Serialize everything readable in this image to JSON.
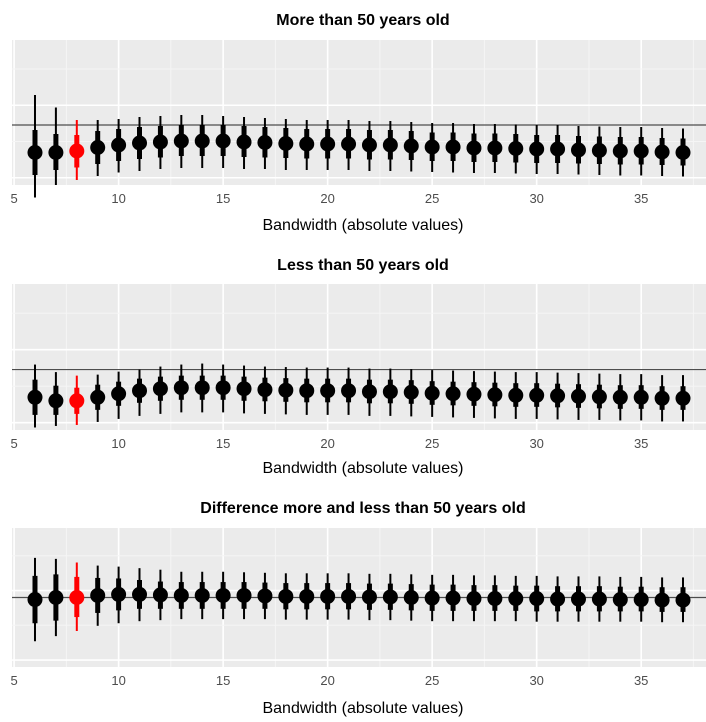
{
  "chart_data": [
    {
      "type": "scatter",
      "title": "More than 50 years old",
      "xlabel": "Bandwidth (absolute values)",
      "ylabel": "",
      "xlim": [
        4.9,
        38.1
      ],
      "ylim": [
        -1.2,
        1.7
      ],
      "xticks": [
        5,
        10,
        15,
        20,
        25,
        30,
        35
      ],
      "yticks": [],
      "reference_line": 0,
      "highlight_x": 8,
      "colors": {
        "point": "#000000",
        "highlight": "#ff0000",
        "panel": "#ebebeb",
        "grid": "#ffffff",
        "reference": "#4d4d4d"
      },
      "x": [
        6,
        7,
        8,
        9,
        10,
        11,
        12,
        13,
        14,
        15,
        16,
        17,
        18,
        19,
        20,
        21,
        22,
        23,
        24,
        25,
        26,
        27,
        28,
        29,
        30,
        31,
        32,
        33,
        34,
        35,
        36,
        37
      ],
      "y": [
        -0.55,
        -0.55,
        -0.52,
        -0.45,
        -0.4,
        -0.36,
        -0.34,
        -0.32,
        -0.32,
        -0.32,
        -0.34,
        -0.35,
        -0.37,
        -0.38,
        -0.38,
        -0.38,
        -0.4,
        -0.4,
        -0.42,
        -0.44,
        -0.44,
        -0.46,
        -0.46,
        -0.47,
        -0.48,
        -0.48,
        -0.5,
        -0.51,
        -0.52,
        -0.52,
        -0.54,
        -0.55
      ],
      "ci_outer_low": [
        -1.45,
        -1.2,
        -1.1,
        -1.02,
        -0.95,
        -0.92,
        -0.88,
        -0.86,
        -0.86,
        -0.86,
        -0.88,
        -0.88,
        -0.9,
        -0.9,
        -0.9,
        -0.9,
        -0.92,
        -0.92,
        -0.93,
        -0.94,
        -0.95,
        -0.96,
        -0.96,
        -0.97,
        -0.98,
        -0.98,
        -0.99,
        -1.0,
        -1.01,
        -1.01,
        -1.02,
        -1.03
      ],
      "ci_outer_high": [
        0.6,
        0.35,
        0.1,
        0.1,
        0.12,
        0.16,
        0.18,
        0.2,
        0.2,
        0.18,
        0.16,
        0.14,
        0.12,
        0.1,
        0.1,
        0.1,
        0.08,
        0.08,
        0.06,
        0.04,
        0.04,
        0.02,
        0.02,
        0.01,
        0.0,
        0.0,
        -0.02,
        -0.03,
        -0.04,
        -0.04,
        -0.06,
        -0.07
      ],
      "ci_inner_low": [
        -1.0,
        -0.9,
        -0.85,
        -0.78,
        -0.72,
        -0.68,
        -0.65,
        -0.62,
        -0.62,
        -0.62,
        -0.64,
        -0.65,
        -0.66,
        -0.67,
        -0.67,
        -0.67,
        -0.69,
        -0.69,
        -0.7,
        -0.72,
        -0.72,
        -0.74,
        -0.74,
        -0.75,
        -0.76,
        -0.76,
        -0.77,
        -0.78,
        -0.79,
        -0.79,
        -0.8,
        -0.81
      ],
      "ci_inner_high": [
        -0.1,
        -0.18,
        -0.2,
        -0.12,
        -0.08,
        -0.04,
        -0.02,
        0.0,
        0.0,
        0.0,
        -0.02,
        -0.04,
        -0.06,
        -0.08,
        -0.08,
        -0.08,
        -0.1,
        -0.1,
        -0.12,
        -0.15,
        -0.15,
        -0.17,
        -0.17,
        -0.18,
        -0.2,
        -0.2,
        -0.22,
        -0.23,
        -0.24,
        -0.24,
        -0.26,
        -0.27
      ]
    },
    {
      "type": "scatter",
      "title": "Less than 50 years old",
      "xlabel": "Bandwidth (absolute values)",
      "ylabel": "",
      "xlim": [
        4.9,
        38.1
      ],
      "ylim": [
        -1.2,
        1.7
      ],
      "xticks": [
        5,
        10,
        15,
        20,
        25,
        30,
        35
      ],
      "yticks": [],
      "reference_line": 0,
      "highlight_x": 8,
      "colors": {
        "point": "#000000",
        "highlight": "#ff0000",
        "panel": "#ebebeb",
        "grid": "#ffffff",
        "reference": "#4d4d4d"
      },
      "x": [
        6,
        7,
        8,
        9,
        10,
        11,
        12,
        13,
        14,
        15,
        16,
        17,
        18,
        19,
        20,
        21,
        22,
        23,
        24,
        25,
        26,
        27,
        28,
        29,
        30,
        31,
        32,
        33,
        34,
        35,
        36,
        37
      ],
      "y": [
        -0.55,
        -0.62,
        -0.62,
        -0.55,
        -0.48,
        -0.42,
        -0.38,
        -0.36,
        -0.36,
        -0.36,
        -0.38,
        -0.4,
        -0.41,
        -0.42,
        -0.42,
        -0.42,
        -0.44,
        -0.44,
        -0.45,
        -0.47,
        -0.48,
        -0.49,
        -0.5,
        -0.51,
        -0.51,
        -0.52,
        -0.53,
        -0.54,
        -0.55,
        -0.55,
        -0.57,
        -0.57
      ],
      "ci_outer_low": [
        -1.15,
        -1.12,
        -1.1,
        -1.04,
        -0.98,
        -0.92,
        -0.88,
        -0.85,
        -0.85,
        -0.85,
        -0.87,
        -0.88,
        -0.89,
        -0.9,
        -0.9,
        -0.9,
        -0.92,
        -0.92,
        -0.93,
        -0.94,
        -0.95,
        -0.96,
        -0.97,
        -0.98,
        -0.98,
        -0.99,
        -1.0,
        -1.0,
        -1.01,
        -1.01,
        -1.03,
        -1.03
      ],
      "ci_outer_high": [
        0.1,
        -0.05,
        -0.12,
        -0.1,
        -0.04,
        0.0,
        0.06,
        0.1,
        0.12,
        0.1,
        0.08,
        0.06,
        0.05,
        0.04,
        0.04,
        0.04,
        0.02,
        0.02,
        0.01,
        -0.01,
        -0.02,
        -0.03,
        -0.04,
        -0.05,
        -0.05,
        -0.06,
        -0.07,
        -0.08,
        -0.09,
        -0.09,
        -0.11,
        -0.11
      ],
      "ci_inner_low": [
        -0.9,
        -0.9,
        -0.88,
        -0.8,
        -0.72,
        -0.66,
        -0.62,
        -0.6,
        -0.6,
        -0.6,
        -0.62,
        -0.63,
        -0.64,
        -0.65,
        -0.65,
        -0.65,
        -0.67,
        -0.67,
        -0.68,
        -0.7,
        -0.71,
        -0.72,
        -0.73,
        -0.74,
        -0.74,
        -0.75,
        -0.76,
        -0.77,
        -0.78,
        -0.78,
        -0.8,
        -0.8
      ],
      "ci_inner_high": [
        -0.2,
        -0.32,
        -0.36,
        -0.3,
        -0.24,
        -0.18,
        -0.14,
        -0.12,
        -0.12,
        -0.12,
        -0.14,
        -0.16,
        -0.17,
        -0.18,
        -0.18,
        -0.18,
        -0.2,
        -0.2,
        -0.21,
        -0.23,
        -0.24,
        -0.25,
        -0.26,
        -0.27,
        -0.27,
        -0.28,
        -0.29,
        -0.3,
        -0.31,
        -0.31,
        -0.33,
        -0.33
      ]
    },
    {
      "type": "scatter",
      "title": "Difference more and less than 50 years old",
      "xlabel": "Bandwidth (absolute values)",
      "ylabel": "",
      "xlim": [
        4.9,
        38.1
      ],
      "ylim": [
        -1.35,
        1.35
      ],
      "xticks": [
        5,
        10,
        15,
        20,
        25,
        30,
        35
      ],
      "yticks": [],
      "reference_line": 0,
      "highlight_x": 8,
      "colors": {
        "point": "#000000",
        "highlight": "#ff0000",
        "panel": "#ebebeb",
        "grid": "#ffffff",
        "reference": "#4d4d4d"
      },
      "x": [
        6,
        7,
        8,
        9,
        10,
        11,
        12,
        13,
        14,
        15,
        16,
        17,
        18,
        19,
        20,
        21,
        22,
        23,
        24,
        25,
        26,
        27,
        28,
        29,
        30,
        31,
        32,
        33,
        34,
        35,
        36,
        37
      ],
      "y": [
        -0.04,
        0.0,
        0.0,
        0.04,
        0.06,
        0.06,
        0.05,
        0.04,
        0.04,
        0.04,
        0.04,
        0.03,
        0.02,
        0.02,
        0.02,
        0.02,
        0.01,
        0.01,
        0.0,
        -0.01,
        -0.01,
        -0.02,
        -0.02,
        -0.02,
        -0.02,
        -0.03,
        -0.03,
        -0.03,
        -0.04,
        -0.04,
        -0.05,
        -0.05
      ],
      "ci_outer_low": [
        -0.85,
        -0.75,
        -0.65,
        -0.55,
        -0.5,
        -0.46,
        -0.44,
        -0.42,
        -0.42,
        -0.42,
        -0.42,
        -0.42,
        -0.43,
        -0.43,
        -0.43,
        -0.43,
        -0.44,
        -0.44,
        -0.45,
        -0.46,
        -0.46,
        -0.46,
        -0.46,
        -0.46,
        -0.47,
        -0.47,
        -0.47,
        -0.47,
        -0.47,
        -0.47,
        -0.48,
        -0.48
      ],
      "ci_outer_high": [
        0.77,
        0.75,
        0.68,
        0.62,
        0.6,
        0.57,
        0.54,
        0.5,
        0.5,
        0.5,
        0.49,
        0.48,
        0.47,
        0.47,
        0.47,
        0.47,
        0.46,
        0.46,
        0.45,
        0.44,
        0.44,
        0.43,
        0.43,
        0.42,
        0.42,
        0.41,
        0.41,
        0.41,
        0.4,
        0.4,
        0.39,
        0.39
      ],
      "ci_inner_low": [
        -0.5,
        -0.45,
        -0.38,
        -0.3,
        -0.25,
        -0.22,
        -0.22,
        -0.22,
        -0.22,
        -0.22,
        -0.22,
        -0.22,
        -0.23,
        -0.23,
        -0.23,
        -0.23,
        -0.24,
        -0.24,
        -0.25,
        -0.26,
        -0.26,
        -0.26,
        -0.26,
        -0.26,
        -0.27,
        -0.27,
        -0.27,
        -0.27,
        -0.27,
        -0.27,
        -0.28,
        -0.28
      ],
      "ci_inner_high": [
        0.42,
        0.45,
        0.4,
        0.38,
        0.37,
        0.34,
        0.31,
        0.3,
        0.3,
        0.3,
        0.3,
        0.29,
        0.28,
        0.28,
        0.28,
        0.28,
        0.27,
        0.27,
        0.26,
        0.25,
        0.25,
        0.24,
        0.24,
        0.23,
        0.23,
        0.22,
        0.22,
        0.22,
        0.21,
        0.21,
        0.2,
        0.2
      ]
    }
  ]
}
